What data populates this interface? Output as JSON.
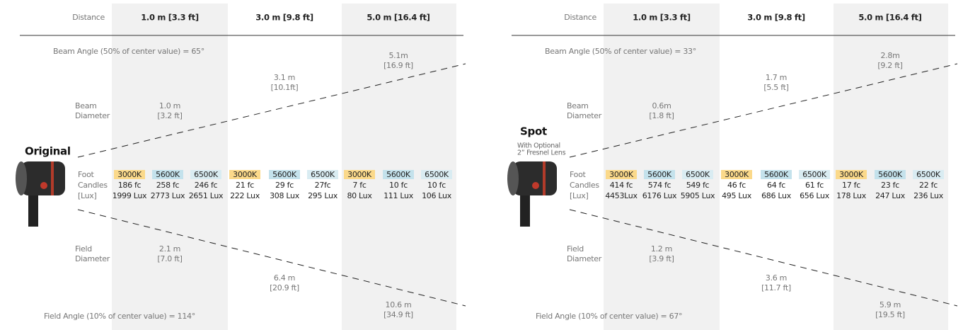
{
  "panels": [
    {
      "title": "Original",
      "distance_label": "Distance",
      "columns": [
        "1.0 m [3.3 ft]",
        "3.0 m [9.8 ft]",
        "5.0 m [16.4 ft]"
      ],
      "beam_angle": "Beam Angle (50% of center value) = 65°",
      "beam_diameter_label": [
        "Beam",
        "Diameter"
      ],
      "beam_diameters": [
        [
          "1.0 m",
          "[3.2 ft]"
        ],
        [
          "3.1 m",
          "[10.1ft]"
        ],
        [
          "5.1m",
          "[16.9 ft]"
        ]
      ],
      "output_label": [
        "Foot",
        "Candles",
        "[Lux]"
      ],
      "readings": [
        {
          "temp": "3000K",
          "fc": "186 fc",
          "lux": "1999 Lux"
        },
        {
          "temp": "5600K",
          "fc": "258 fc",
          "lux": "2773 Lux"
        },
        {
          "temp": "6500K",
          "fc": "246 fc",
          "lux": "2651 Lux"
        },
        {
          "temp": "3000K",
          "fc": "21 fc",
          "lux": "222 Lux"
        },
        {
          "temp": "5600K",
          "fc": "29 fc",
          "lux": "308 Lux"
        },
        {
          "temp": "6500K",
          "fc": "27fc",
          "lux": "295 Lux"
        },
        {
          "temp": "3000K",
          "fc": "7 fc",
          "lux": "80 Lux"
        },
        {
          "temp": "5600K",
          "fc": "10 fc",
          "lux": "111 Lux"
        },
        {
          "temp": "6500K",
          "fc": "10 fc",
          "lux": "106 Lux"
        }
      ],
      "field_diameter_label": [
        "Field",
        "Diameter"
      ],
      "field_diameters": [
        [
          "2.1 m",
          "[7.0 ft]"
        ],
        [
          "6.4 m",
          "[20.9 ft]"
        ],
        [
          "10.6 m",
          "[34.9 ft]"
        ]
      ],
      "field_angle": "Field Angle (10% of center value) = 114°"
    },
    {
      "title": "Spot",
      "subtitle": [
        "With Optional",
        "2” Fresnel Lens"
      ],
      "distance_label": "Distance",
      "columns": [
        "1.0 m [3.3 ft]",
        "3.0 m [9.8 ft]",
        "5.0 m [16.4 ft]"
      ],
      "beam_angle": "Beam Angle (50% of center value) = 33°",
      "beam_diameter_label": [
        "Beam",
        "Diameter"
      ],
      "beam_diameters": [
        [
          "0.6m",
          "[1.8 ft]"
        ],
        [
          "1.7 m",
          "[5.5 ft]"
        ],
        [
          "2.8m",
          "[9.2 ft]"
        ]
      ],
      "output_label": [
        "Foot",
        "Candles",
        "[Lux]"
      ],
      "readings": [
        {
          "temp": "3000K",
          "fc": "414 fc",
          "lux": "4453Lux"
        },
        {
          "temp": "5600K",
          "fc": "574 fc",
          "lux": "6176 Lux"
        },
        {
          "temp": "6500K",
          "fc": "549 fc",
          "lux": "5905 Lux"
        },
        {
          "temp": "3000K",
          "fc": "46 fc",
          "lux": "495 Lux"
        },
        {
          "temp": "5600K",
          "fc": "64 fc",
          "lux": "686 Lux"
        },
        {
          "temp": "6500K",
          "fc": "61 fc",
          "lux": "656 Lux"
        },
        {
          "temp": "3000K",
          "fc": "17 fc",
          "lux": "178 Lux"
        },
        {
          "temp": "5600K",
          "fc": "23 fc",
          "lux": "247 Lux"
        },
        {
          "temp": "6500K",
          "fc": "22 fc",
          "lux": "236 Lux"
        }
      ],
      "field_diameter_label": [
        "Field",
        "Diameter"
      ],
      "field_diameters": [
        [
          "1.2 m",
          "[3.9 ft]"
        ],
        [
          "3.6 m",
          "[11.7 ft]"
        ],
        [
          "5.9 m",
          "[19.5 ft]"
        ]
      ],
      "field_angle": "Field Angle (10% of center value) = 67°"
    }
  ]
}
